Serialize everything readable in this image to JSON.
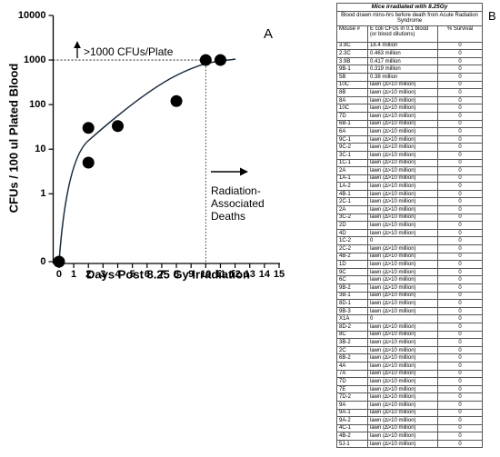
{
  "chart_data": {
    "type": "scatter",
    "panel_label": "A",
    "xlabel": "Days Post 8.25 Gy Irradiation",
    "ylabel": "CFUs / 100 ul Plated Blood",
    "annotations": [
      ">1000 CFUs/Plate",
      [
        "Radiation-",
        "Associated",
        "Deaths"
      ]
    ],
    "x": [
      0,
      2,
      2,
      4,
      8,
      10,
      11
    ],
    "values": [
      0,
      30,
      5,
      33,
      120,
      1000,
      1000
    ],
    "color": "#000000",
    "xlim": [
      -0.4,
      15
    ],
    "xticks": [
      0,
      1,
      2,
      3,
      4,
      5,
      6,
      7,
      8,
      9,
      10,
      11,
      12,
      13,
      14,
      15
    ],
    "ylim": [
      0.03,
      10000
    ],
    "yticks": [
      {
        "value": 0,
        "label": "0"
      },
      1,
      10,
      100,
      1000,
      10000
    ],
    "y_log": true
  },
  "table": {
    "label": "B",
    "title": "Mice irradiated with 8.25Gy",
    "subtitle": "Blood drawn mins-hrs before death from Acute Radiation Syndrome",
    "header": [
      "Mouse #",
      "E coli CFUs in 0.1 blood (or blood dilutions)",
      "% Survival"
    ],
    "rows": [
      [
        "3.9C",
        "18.4 million",
        "0"
      ],
      [
        "2.3C",
        "0.463 million",
        "0"
      ],
      [
        "3.9B",
        "0.417 million",
        "0"
      ],
      [
        "9B-1",
        "0.319 million",
        "0"
      ],
      [
        "5B",
        "0.38 million",
        "0"
      ],
      [
        "10C",
        "lawn (∆>10 million)",
        "0"
      ],
      [
        "8B",
        "lawn (∆>10 million)",
        "0"
      ],
      [
        "8A",
        "lawn (∆>10 million)",
        "0"
      ],
      [
        "10C",
        "lawn (∆>10 million)",
        "0"
      ],
      [
        "7D",
        "lawn (∆>10 million)",
        "0"
      ],
      [
        "6B-1",
        "lawn (∆>10 million)",
        "0"
      ],
      [
        "6A",
        "lawn (∆>10 million)",
        "0"
      ],
      [
        "9C-1",
        "lawn (∆>10 million)",
        "0"
      ],
      [
        "9C-2",
        "lawn (∆>10 million)",
        "0"
      ],
      [
        "3C-1",
        "lawn (∆>10 million)",
        "0"
      ],
      [
        "1C-1",
        "lawn (∆>10 million)",
        "0"
      ],
      [
        "2A",
        "lawn (∆>10 million)",
        "0"
      ],
      [
        "1A-1",
        "lawn (∆>10 million)",
        "0"
      ],
      [
        "1A-2",
        "lawn (∆>10 million)",
        "0"
      ],
      [
        "4B-1",
        "lawn (∆>10 million)",
        "0"
      ],
      [
        "2C-1",
        "lawn (∆>10 million)",
        "0"
      ],
      [
        "2A",
        "lawn (∆>10 million)",
        "0"
      ],
      [
        "3C-2",
        "lawn (∆>10 million)",
        "0"
      ],
      [
        "2D",
        "lawn (∆>10 million)",
        "0"
      ],
      [
        "4D",
        "lawn (∆>10 million)",
        "0"
      ],
      [
        "1C-2",
        "0",
        "0"
      ],
      [
        "2C-2",
        "lawn (∆>10 million)",
        "0"
      ],
      [
        "4B-2",
        "lawn (∆>10 million)",
        "0"
      ],
      [
        "1D",
        "lawn (∆>10 million)",
        "0"
      ],
      [
        "9C",
        "lawn (∆>10 million)",
        "0"
      ],
      [
        "6C",
        "lawn (∆>10 million)",
        "0"
      ],
      [
        "9B-2",
        "lawn (∆>10 million)",
        "0"
      ],
      [
        "3B-1",
        "lawn (∆>10 million)",
        "0"
      ],
      [
        "8D-1",
        "lawn (∆>10 million)",
        "0"
      ],
      [
        "9B-3",
        "lawn (∆>10 million)",
        "0"
      ],
      [
        "X1A",
        "0",
        "0"
      ],
      [
        "8D-2",
        "lawn (∆>10 million)",
        "0"
      ],
      [
        "8C",
        "lawn (∆>10 million)",
        "0"
      ],
      [
        "3B-2",
        "lawn (∆>10 million)",
        "0"
      ],
      [
        "2C",
        "lawn (∆>10 million)",
        "0"
      ],
      [
        "6B-2",
        "lawn (∆>10 million)",
        "0"
      ],
      [
        "4A",
        "lawn (∆>10 million)",
        "0"
      ],
      [
        "7A",
        "lawn (∆>10 million)",
        "0"
      ],
      [
        "7D",
        "lawn (∆>10 million)",
        "0"
      ],
      [
        "7E",
        "lawn (∆>10 million)",
        "0"
      ],
      [
        "7D-2",
        "lawn (∆>10 million)",
        "0"
      ],
      [
        "9A",
        "lawn (∆>10 million)",
        "0"
      ],
      [
        "9A-1",
        "lawn (∆>10 million)",
        "0"
      ],
      [
        "9A-2",
        "lawn (∆>10 million)",
        "0"
      ],
      [
        "4C-1",
        "lawn (∆>10 million)",
        "0"
      ],
      [
        "4B-2",
        "lawn (∆>10 million)",
        "0"
      ],
      [
        "5J-1",
        "lawn (∆>10 million)",
        "0"
      ]
    ]
  }
}
